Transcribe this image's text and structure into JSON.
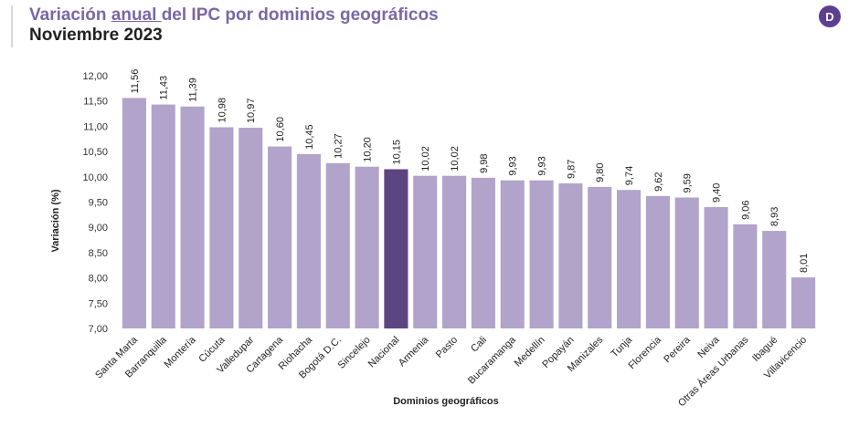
{
  "header": {
    "title_pre": "Variación ",
    "title_u": "anual ",
    "title_post": "del IPC por dominios geográficos",
    "subtitle": "Noviembre 2023",
    "logo": "D"
  },
  "colors": {
    "bar": "#b2a3ca",
    "highlight": "#5c4580",
    "title": "#7b67a6",
    "text": "#222222"
  },
  "chart_data": {
    "type": "bar",
    "xlabel": "Dominios geográficos",
    "ylabel": "Variación (%)",
    "ylim": [
      7.0,
      12.0
    ],
    "yticks": [
      "7,00",
      "7,50",
      "8,00",
      "8,50",
      "9,00",
      "9,50",
      "10,00",
      "10,50",
      "11,00",
      "11,50",
      "12,00"
    ],
    "ytick_values": [
      7.0,
      7.5,
      8.0,
      8.5,
      9.0,
      9.5,
      10.0,
      10.5,
      11.0,
      11.5,
      12.0
    ],
    "grid": false,
    "highlight_category": "Nacional",
    "categories": [
      "Santa Marta",
      "Barranquilla",
      "Montería",
      "Cúcuta",
      "Valledupar",
      "Cartagena",
      "Riohacha",
      "Bogotá D.C.",
      "Sincelejo",
      "Nacional",
      "Armenia",
      "Pasto",
      "Cali",
      "Bucaramanga",
      "Medellín",
      "Popayán",
      "Manizales",
      "Tunja",
      "Florencia",
      "Pereira",
      "Neiva",
      "Otras Áreas Urbanas",
      "Ibagué",
      "Villavicencio"
    ],
    "values": [
      11.56,
      11.43,
      11.39,
      10.98,
      10.97,
      10.6,
      10.45,
      10.27,
      10.2,
      10.15,
      10.02,
      10.02,
      9.98,
      9.93,
      9.93,
      9.87,
      9.8,
      9.74,
      9.62,
      9.59,
      9.4,
      9.06,
      8.93,
      8.01
    ],
    "labels": [
      "11,56",
      "11,43",
      "11,39",
      "10,98",
      "10,97",
      "10,60",
      "10,45",
      "10,27",
      "10,20",
      "10,15",
      "10,02",
      "10,02",
      "9,98",
      "9,93",
      "9,93",
      "9,87",
      "9,80",
      "9,74",
      "9,62",
      "9,59",
      "9,40",
      "9,06",
      "8,93",
      "8,01"
    ]
  }
}
